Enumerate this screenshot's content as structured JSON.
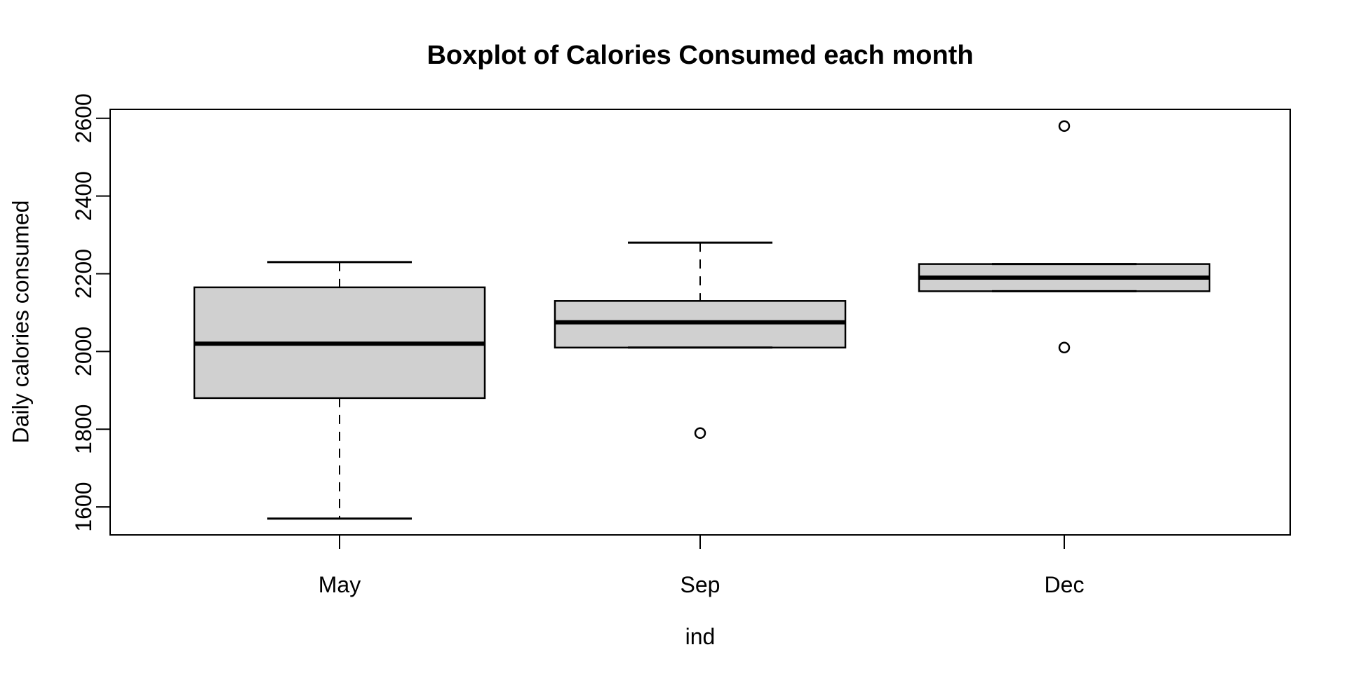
{
  "title": "Boxplot of Calories Consumed each month",
  "chart_data": {
    "type": "boxplot",
    "title": "Boxplot of Calories Consumed each month",
    "xlabel": "ind",
    "ylabel": "Daily calories consumed",
    "categories": [
      "May",
      "Sep",
      "Dec"
    ],
    "y_ticks": [
      1600,
      1800,
      2000,
      2200,
      2400,
      2600
    ],
    "ylim": [
      1528,
      2623
    ],
    "grid": false,
    "legend": false,
    "box_fill_color": "#d0d0d0",
    "stroke_color": "#000000",
    "series": [
      {
        "category": "May",
        "whisker_low": 1570,
        "q1": 1880,
        "median": 2020,
        "q3": 2165,
        "whisker_high": 2230,
        "outliers": []
      },
      {
        "category": "Sep",
        "whisker_low": 2010,
        "q1": 2010,
        "median": 2075,
        "q3": 2130,
        "whisker_high": 2280,
        "outliers": [
          1790
        ]
      },
      {
        "category": "Dec",
        "whisker_low": 2155,
        "q1": 2155,
        "median": 2190,
        "q3": 2225,
        "whisker_high": 2225,
        "outliers": [
          2010,
          2580
        ]
      }
    ]
  }
}
